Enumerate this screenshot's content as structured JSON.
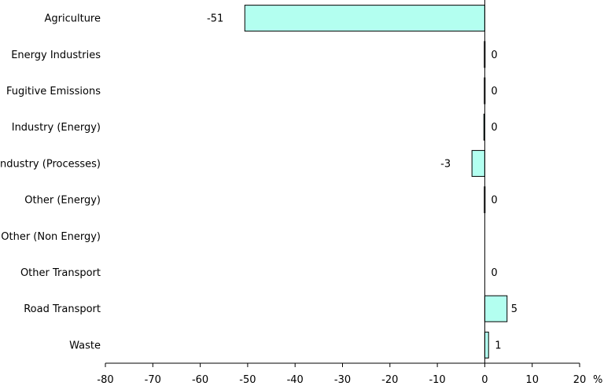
{
  "chart_data": {
    "type": "bar",
    "orientation": "horizontal",
    "categories": [
      "Agriculture",
      "Energy Industries",
      "Fugitive Emissions",
      "Industry (Energy)",
      "Industry (Processes)",
      "Other (Energy)",
      "Other (Non Energy)",
      "Other Transport",
      "Road Transport",
      "Waste"
    ],
    "values": [
      -50.6,
      -0.1,
      -0.1,
      -0.2,
      -2.7,
      -0.1,
      0,
      0,
      4.7,
      0.8
    ],
    "data_labels": [
      "-51",
      "0",
      "0",
      "0",
      "-3",
      "0",
      "",
      "0",
      "5",
      "1"
    ],
    "xlim": [
      -80,
      20
    ],
    "xticks": [
      -80,
      -70,
      -60,
      -50,
      -40,
      -30,
      -20,
      -10,
      0,
      10,
      20
    ],
    "xtick_labels": [
      "-80",
      "-70",
      "-60",
      "-50",
      "-40",
      "-30",
      "-20",
      "-10",
      "0",
      "10",
      "20"
    ],
    "unit": "%",
    "title": "",
    "xlabel": "",
    "ylabel": "",
    "grid": false,
    "legend": "none",
    "colors": {
      "bar_fill": "#b3fff0",
      "bar_stroke": "#000000",
      "axis": "#000000",
      "text": "#000000"
    }
  }
}
